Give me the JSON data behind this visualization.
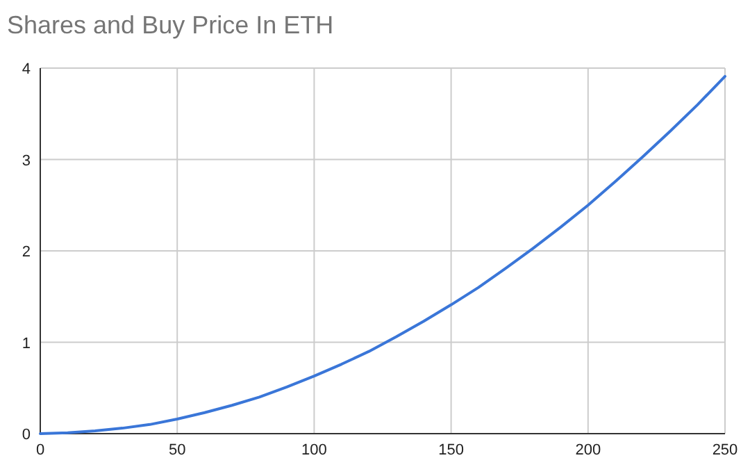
{
  "chart_data": {
    "type": "line",
    "title": "Shares and Buy Price In ETH",
    "x": [
      0,
      10,
      20,
      30,
      40,
      50,
      60,
      70,
      80,
      90,
      100,
      110,
      120,
      130,
      140,
      150,
      160,
      170,
      180,
      190,
      200,
      210,
      220,
      230,
      240,
      250
    ],
    "series": [
      {
        "color": "#3a76d8",
        "values": [
          0,
          0.01,
          0.03,
          0.06,
          0.1,
          0.16,
          0.23,
          0.31,
          0.4,
          0.51,
          0.63,
          0.76,
          0.9,
          1.06,
          1.23,
          1.41,
          1.6,
          1.81,
          2.03,
          2.26,
          2.5,
          2.76,
          3.03,
          3.31,
          3.6,
          3.91
        ]
      }
    ],
    "xlim": [
      0,
      250
    ],
    "xticks": [
      0,
      50,
      100,
      150,
      200,
      250
    ],
    "ylim": [
      0,
      4
    ],
    "yticks": [
      0,
      1,
      2,
      3,
      4
    ],
    "grid": true,
    "marker": "none",
    "line_style": "solid"
  }
}
